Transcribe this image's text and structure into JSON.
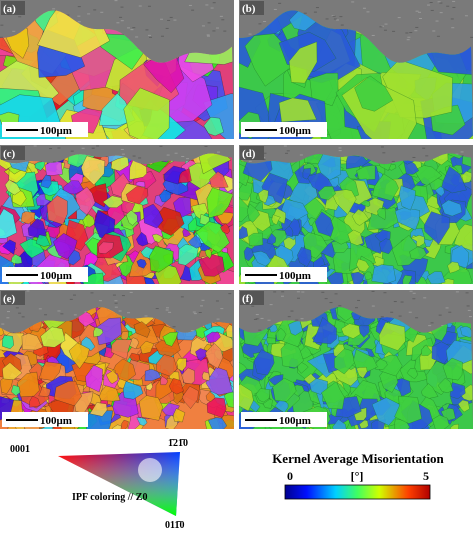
{
  "panels": [
    {
      "label": "(a)",
      "scale": "100μm"
    },
    {
      "label": "(b)",
      "scale": "100μm"
    },
    {
      "label": "(c)",
      "scale": "100μm"
    },
    {
      "label": "(d)",
      "scale": "100μm"
    },
    {
      "label": "(e)",
      "scale": "100μm"
    },
    {
      "label": "(f)",
      "scale": "100μm"
    }
  ],
  "ipf_legend": {
    "corner_left": "0001",
    "corner_top": "1̄21̄0",
    "corner_bottom": "011̄0",
    "caption": "IPF coloring // Z0"
  },
  "kam_legend": {
    "title": "Kernel Average Misorientation",
    "min": "0",
    "unit": "[°]",
    "max": "5"
  }
}
